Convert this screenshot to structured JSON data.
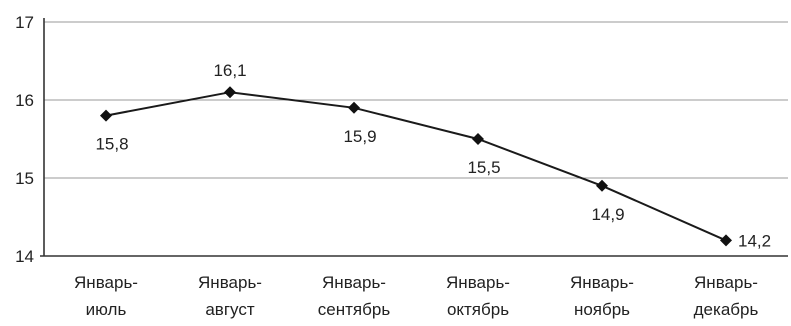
{
  "chart_data": {
    "type": "line",
    "title": "",
    "xlabel": "",
    "ylabel": "",
    "ylim": [
      14,
      17
    ],
    "yticks": [
      "14",
      "15",
      "16",
      "17"
    ],
    "grid": true,
    "legend": "none",
    "categories": [
      [
        "Январь-",
        "июль"
      ],
      [
        "Январь-",
        "август"
      ],
      [
        "Январь-",
        "сентябрь"
      ],
      [
        "Январь-",
        "октябрь"
      ],
      [
        "Январь-",
        "ноябрь"
      ],
      [
        "Январь-",
        "декабрь"
      ]
    ],
    "series": [
      {
        "values": [
          15.8,
          16.1,
          15.9,
          15.5,
          14.9,
          14.2
        ],
        "labels": [
          "15,8",
          "16,1",
          "15,9",
          "15,5",
          "14,9",
          "14,2"
        ],
        "label_positions": [
          "below",
          "above",
          "below",
          "below",
          "below",
          "right"
        ]
      }
    ],
    "colors": {
      "line": "#1a1a1a",
      "grid": "#9a9a9a",
      "axis": "#333333",
      "text": "#222222"
    }
  }
}
